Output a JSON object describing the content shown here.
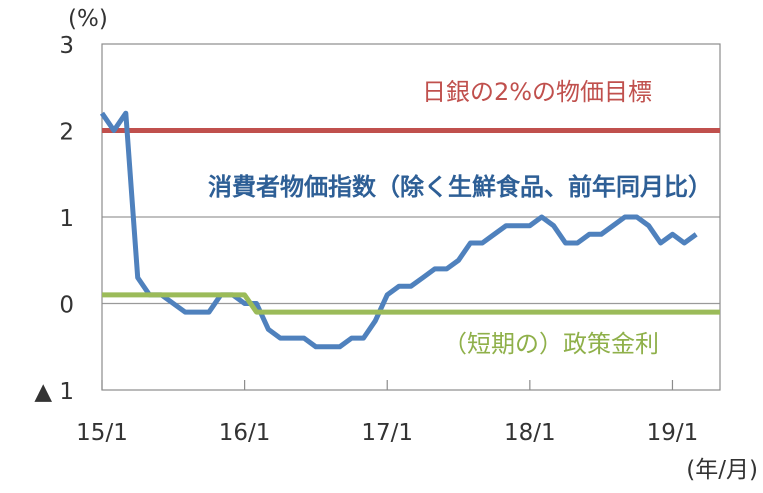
{
  "chart_data": {
    "type": "line",
    "unit_label": "(%)",
    "x_unit_label": "(年/月)",
    "ylim": [
      -1,
      3
    ],
    "y_ticks": [
      {
        "value": 3,
        "label": "3"
      },
      {
        "value": 2,
        "label": "2"
      },
      {
        "value": 1,
        "label": "1"
      },
      {
        "value": 0,
        "label": "0"
      },
      {
        "value": -1,
        "label": "▲ 1"
      }
    ],
    "xlim": [
      "2015-01",
      "2019-05"
    ],
    "x_ticks": [
      {
        "value": "2015-01",
        "label": "15/1"
      },
      {
        "value": "2016-01",
        "label": "16/1"
      },
      {
        "value": "2017-01",
        "label": "17/1"
      },
      {
        "value": "2018-01",
        "label": "18/1"
      },
      {
        "value": "2019-01",
        "label": "19/1"
      }
    ],
    "grid": "horizontal",
    "series": [
      {
        "name": "日銀の2%の物価目標",
        "color": "#c0504d",
        "x": [
          "2015-01",
          "2019-05"
        ],
        "y": [
          2,
          2
        ]
      },
      {
        "name": "消費者物価指数（除く生鮮食品、前年同月比）",
        "color": "#4f81bd",
        "x": [
          "2015-01",
          "2015-02",
          "2015-03",
          "2015-04",
          "2015-05",
          "2015-06",
          "2015-07",
          "2015-08",
          "2015-09",
          "2015-10",
          "2015-11",
          "2015-12",
          "2016-01",
          "2016-02",
          "2016-03",
          "2016-04",
          "2016-05",
          "2016-06",
          "2016-07",
          "2016-08",
          "2016-09",
          "2016-10",
          "2016-11",
          "2016-12",
          "2017-01",
          "2017-02",
          "2017-03",
          "2017-04",
          "2017-05",
          "2017-06",
          "2017-07",
          "2017-08",
          "2017-09",
          "2017-10",
          "2017-11",
          "2017-12",
          "2018-01",
          "2018-02",
          "2018-03",
          "2018-04",
          "2018-05",
          "2018-06",
          "2018-07",
          "2018-08",
          "2018-09",
          "2018-10",
          "2018-11",
          "2018-12",
          "2019-01",
          "2019-02",
          "2019-03"
        ],
        "y": [
          2.2,
          2.0,
          2.2,
          0.3,
          0.1,
          0.1,
          0.0,
          -0.1,
          -0.1,
          -0.1,
          0.1,
          0.1,
          0.0,
          0.0,
          -0.3,
          -0.4,
          -0.4,
          -0.4,
          -0.5,
          -0.5,
          -0.5,
          -0.4,
          -0.4,
          -0.2,
          0.1,
          0.2,
          0.2,
          0.3,
          0.4,
          0.4,
          0.5,
          0.7,
          0.7,
          0.8,
          0.9,
          0.9,
          0.9,
          1.0,
          0.9,
          0.7,
          0.7,
          0.8,
          0.8,
          0.9,
          1.0,
          1.0,
          0.9,
          0.7,
          0.8,
          0.7,
          0.8
        ]
      },
      {
        "name": "（短期の）政策金利",
        "color": "#9bbb59",
        "x": [
          "2015-01",
          "2015-12",
          "2016-01",
          "2016-02",
          "2019-05"
        ],
        "y": [
          0.1,
          0.1,
          0.1,
          -0.1,
          -0.1
        ]
      }
    ]
  }
}
